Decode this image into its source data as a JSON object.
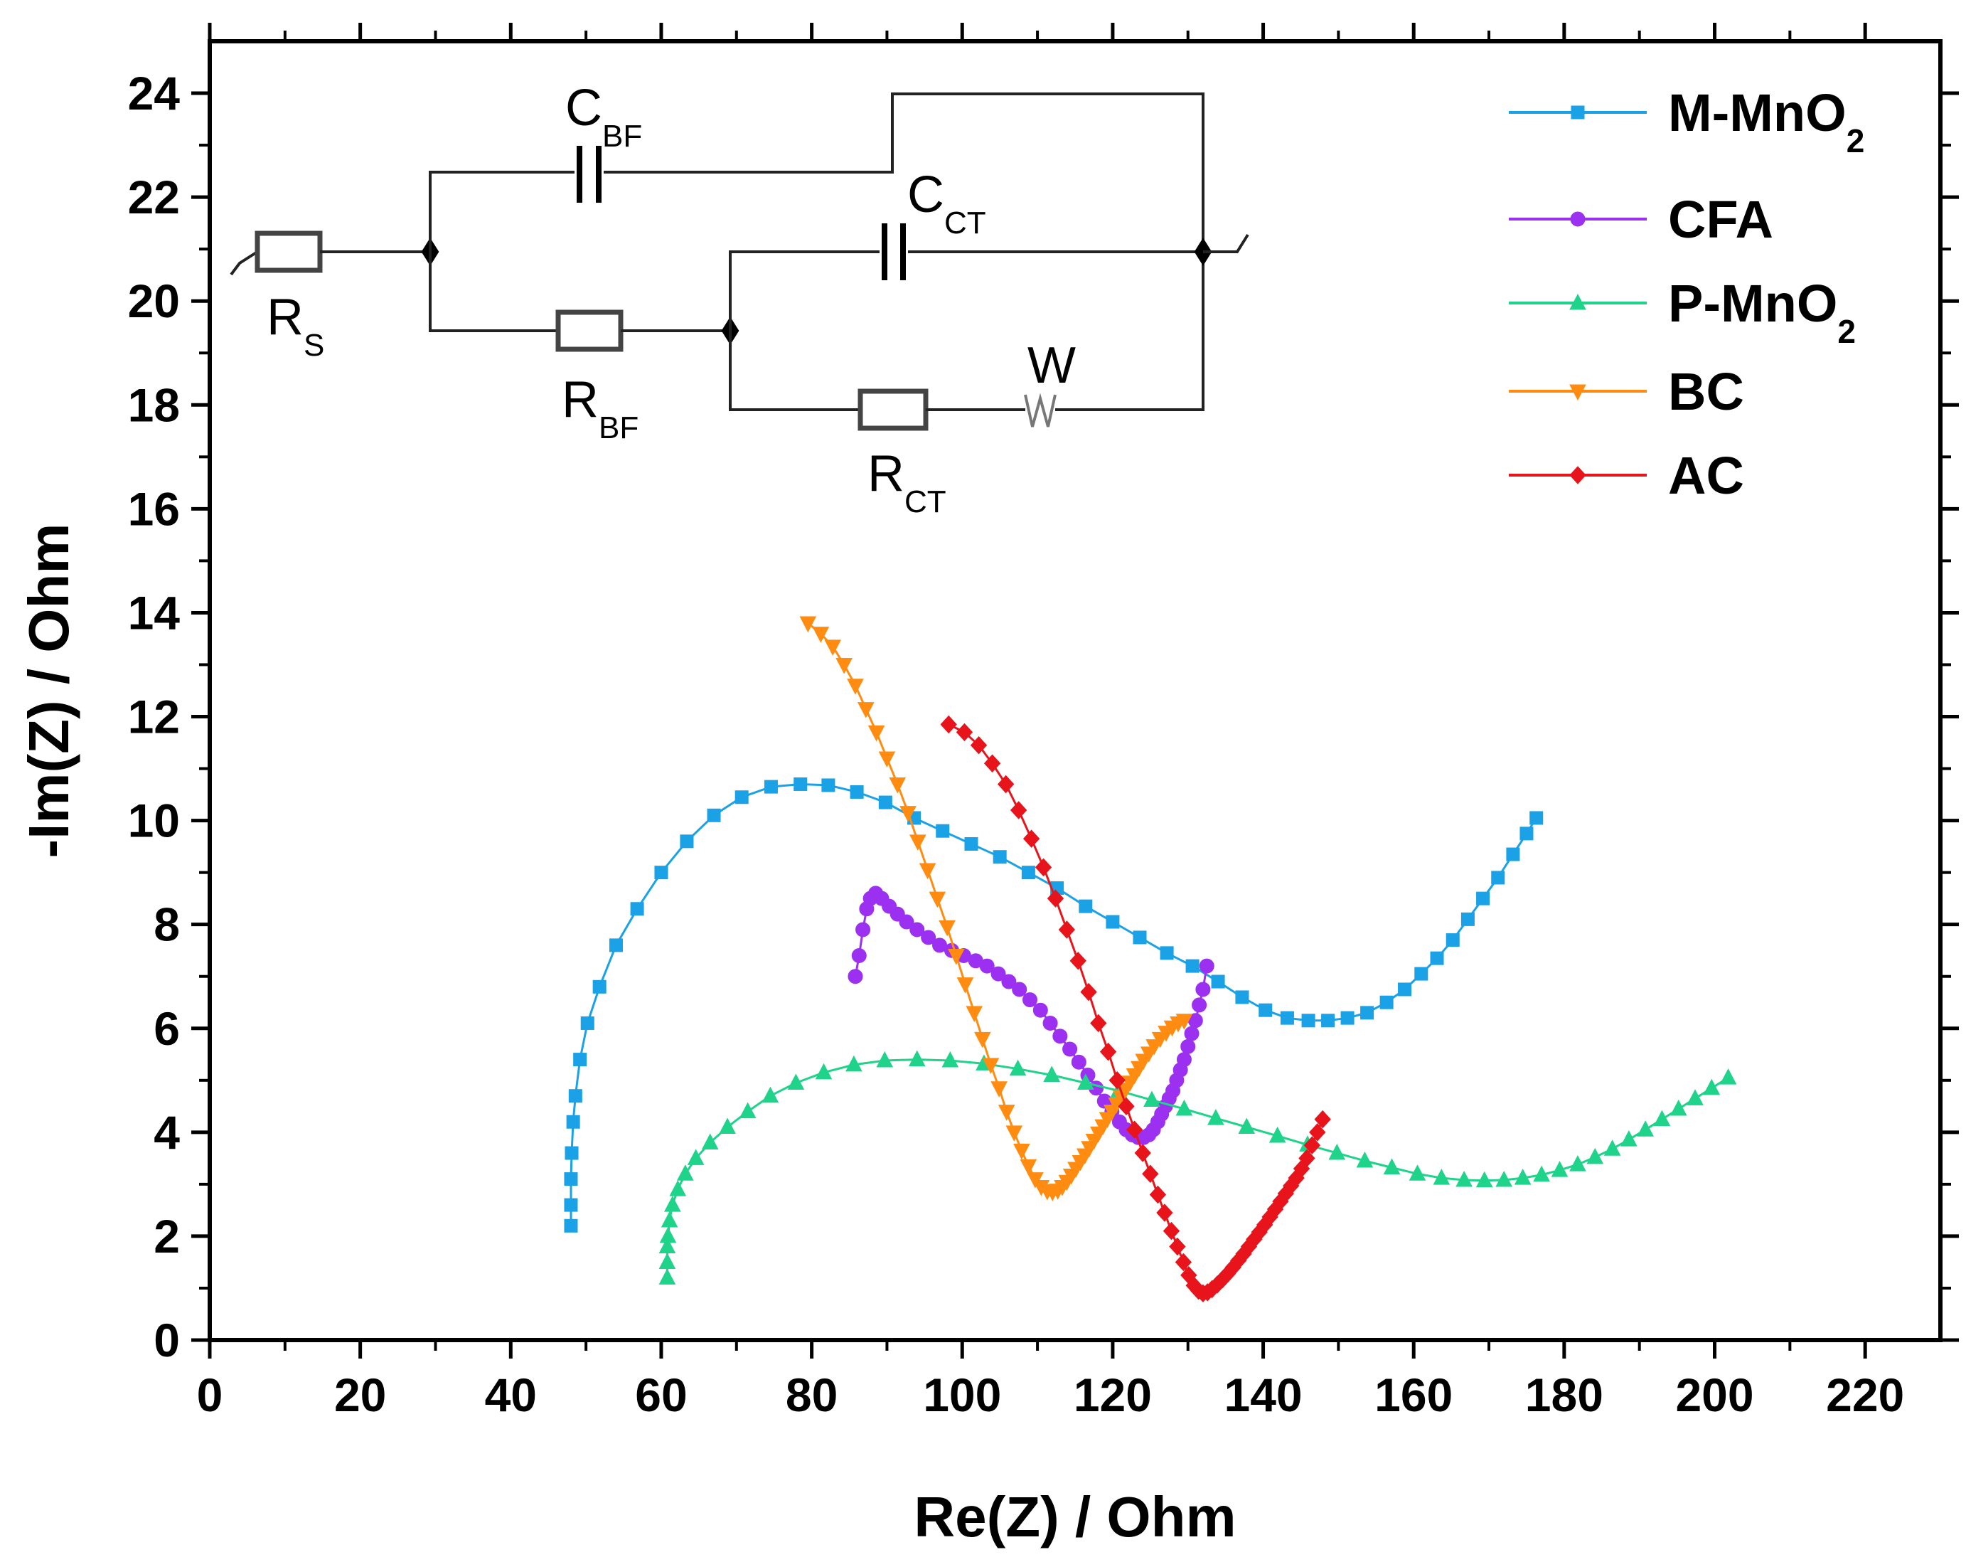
{
  "chart_data": {
    "type": "line",
    "title": "",
    "xlabel": "Re(Z) / Ohm",
    "ylabel": "-Im(Z) / Ohm",
    "xlim": [
      0,
      230
    ],
    "ylim": [
      0,
      25
    ],
    "x_ticks": [
      0,
      20,
      40,
      60,
      80,
      100,
      120,
      140,
      160,
      180,
      200,
      220
    ],
    "y_ticks": [
      0,
      2,
      4,
      6,
      8,
      10,
      12,
      14,
      16,
      18,
      20,
      22,
      24
    ],
    "grid": false,
    "legend_position": "top-right",
    "series": [
      {
        "name": "M-MnO2",
        "label_main": "M-MnO",
        "label_sub": "2",
        "color": "#1aa1e6",
        "marker": "square",
        "x": [
          48.0,
          48.0,
          48.0,
          48.1,
          48.3,
          48.6,
          49.2,
          50.2,
          51.8,
          54.0,
          56.8,
          60.0,
          63.4,
          67.0,
          70.7,
          74.6,
          78.5,
          82.2,
          86.0,
          89.8,
          93.6,
          97.4,
          101.2,
          105.0,
          108.8,
          112.6,
          116.4,
          120.0,
          123.6,
          127.2,
          130.6,
          134.0,
          137.2,
          140.3,
          143.2,
          146.0,
          148.6,
          151.2,
          153.8,
          156.4,
          158.8,
          161.0,
          163.1,
          165.2,
          167.2,
          169.2,
          171.2,
          173.2,
          175.0,
          176.3
        ],
        "y": [
          2.2,
          2.6,
          3.1,
          3.6,
          4.2,
          4.7,
          5.4,
          6.1,
          6.8,
          7.6,
          8.3,
          9.0,
          9.6,
          10.1,
          10.45,
          10.65,
          10.7,
          10.68,
          10.55,
          10.35,
          10.05,
          9.8,
          9.55,
          9.3,
          9.0,
          8.7,
          8.35,
          8.05,
          7.75,
          7.45,
          7.2,
          6.9,
          6.6,
          6.35,
          6.2,
          6.15,
          6.15,
          6.2,
          6.3,
          6.5,
          6.75,
          7.05,
          7.35,
          7.7,
          8.1,
          8.5,
          8.9,
          9.35,
          9.75,
          10.05
        ]
      },
      {
        "name": "CFA",
        "label_main": "CFA",
        "label_sub": "",
        "color": "#9c30f0",
        "marker": "circle",
        "x": [
          85.8,
          86.3,
          86.8,
          87.3,
          87.8,
          88.5,
          89.3,
          90.3,
          91.4,
          92.6,
          94.0,
          95.5,
          97.0,
          98.6,
          100.2,
          101.8,
          103.3,
          104.8,
          106.2,
          107.6,
          109.0,
          110.4,
          111.7,
          113.0,
          114.3,
          115.5,
          116.7,
          117.8,
          118.9,
          119.9,
          120.9,
          121.8,
          122.6,
          123.4,
          124.1,
          124.8,
          125.4,
          126.0,
          126.5,
          127.0,
          127.5,
          128.0,
          128.5,
          129.0,
          129.5,
          130.0,
          130.5,
          131.0,
          131.5,
          132.0,
          132.5
        ],
        "y": [
          7.0,
          7.4,
          7.9,
          8.3,
          8.5,
          8.6,
          8.5,
          8.35,
          8.2,
          8.05,
          7.9,
          7.75,
          7.6,
          7.5,
          7.4,
          7.3,
          7.2,
          7.05,
          6.9,
          6.75,
          6.55,
          6.35,
          6.1,
          5.85,
          5.6,
          5.35,
          5.1,
          4.85,
          4.6,
          4.4,
          4.2,
          4.05,
          3.95,
          3.9,
          3.9,
          3.95,
          4.05,
          4.2,
          4.35,
          4.5,
          4.65,
          4.8,
          5.0,
          5.2,
          5.4,
          5.65,
          5.9,
          6.15,
          6.45,
          6.75,
          7.2
        ]
      },
      {
        "name": "P-MnO2",
        "label_main": "P-MnO",
        "label_sub": "2",
        "color": "#1fd38a",
        "marker": "triangle-up",
        "x": [
          60.8,
          60.8,
          60.8,
          60.9,
          61.1,
          61.5,
          62.2,
          63.2,
          64.6,
          66.5,
          68.8,
          71.5,
          74.5,
          77.9,
          81.6,
          85.6,
          89.7,
          94.0,
          98.4,
          102.9,
          107.4,
          111.9,
          116.4,
          120.8,
          125.2,
          129.5,
          133.7,
          137.8,
          141.9,
          145.9,
          149.8,
          153.5,
          157.1,
          160.5,
          163.7,
          166.7,
          169.4,
          172.0,
          174.5,
          177.0,
          179.4,
          181.8,
          184.1,
          186.4,
          188.6,
          190.8,
          193.0,
          195.2,
          197.4,
          199.6,
          201.8
        ],
        "y": [
          1.2,
          1.5,
          1.8,
          2.0,
          2.3,
          2.6,
          2.9,
          3.2,
          3.5,
          3.8,
          4.1,
          4.4,
          4.7,
          4.95,
          5.15,
          5.3,
          5.38,
          5.4,
          5.38,
          5.32,
          5.22,
          5.1,
          4.95,
          4.8,
          4.62,
          4.45,
          4.27,
          4.1,
          3.93,
          3.76,
          3.6,
          3.45,
          3.32,
          3.2,
          3.12,
          3.08,
          3.07,
          3.08,
          3.12,
          3.18,
          3.27,
          3.38,
          3.52,
          3.68,
          3.86,
          4.05,
          4.25,
          4.45,
          4.65,
          4.85,
          5.05
        ]
      },
      {
        "name": "BC",
        "label_main": "BC",
        "label_sub": "",
        "color": "#ff8c10",
        "marker": "triangle-down",
        "x": [
          79.5,
          81.2,
          82.8,
          84.3,
          85.8,
          87.2,
          88.6,
          90.0,
          91.4,
          92.8,
          94.1,
          95.4,
          96.7,
          98.0,
          99.2,
          100.4,
          101.6,
          102.7,
          103.8,
          104.9,
          105.9,
          106.9,
          107.9,
          108.8,
          109.7,
          110.5,
          111.3,
          112.0,
          112.7,
          113.3,
          113.9,
          114.5,
          115.1,
          115.7,
          116.3,
          116.9,
          117.5,
          118.1,
          118.7,
          119.3,
          119.9,
          120.5,
          121.1,
          121.7,
          122.3,
          122.9,
          123.5,
          124.1,
          124.8,
          125.5,
          126.3,
          127.1,
          127.9,
          128.7,
          129.5
        ],
        "y": [
          13.8,
          13.6,
          13.35,
          13.0,
          12.6,
          12.15,
          11.7,
          11.2,
          10.7,
          10.15,
          9.6,
          9.05,
          8.5,
          7.95,
          7.4,
          6.85,
          6.3,
          5.8,
          5.3,
          4.85,
          4.4,
          4.0,
          3.65,
          3.35,
          3.1,
          2.95,
          2.87,
          2.85,
          2.88,
          2.95,
          3.05,
          3.17,
          3.3,
          3.43,
          3.56,
          3.7,
          3.84,
          3.98,
          4.12,
          4.26,
          4.4,
          4.54,
          4.68,
          4.82,
          4.96,
          5.1,
          5.24,
          5.38,
          5.52,
          5.66,
          5.8,
          5.92,
          6.02,
          6.1,
          6.15
        ]
      },
      {
        "name": "AC",
        "label_main": "AC",
        "label_sub": "",
        "color": "#e8141b",
        "marker": "diamond",
        "x": [
          98.2,
          100.3,
          102.2,
          104.0,
          105.8,
          107.5,
          109.2,
          110.8,
          112.4,
          113.9,
          115.4,
          116.8,
          118.1,
          119.4,
          120.6,
          121.8,
          122.9,
          124.0,
          125.0,
          126.0,
          126.9,
          127.8,
          128.6,
          129.4,
          130.1,
          130.8,
          131.4,
          132.0,
          132.6,
          133.2,
          133.9,
          134.6,
          135.3,
          136.0,
          136.7,
          137.4,
          138.1,
          138.8,
          139.5,
          140.2,
          140.9,
          141.6,
          142.3,
          143.0,
          143.7,
          144.4,
          145.1,
          145.8,
          146.5,
          147.2,
          147.9
        ],
        "y": [
          11.85,
          11.7,
          11.45,
          11.1,
          10.7,
          10.2,
          9.65,
          9.1,
          8.5,
          7.9,
          7.3,
          6.7,
          6.1,
          5.55,
          5.0,
          4.5,
          4.05,
          3.6,
          3.2,
          2.8,
          2.45,
          2.1,
          1.8,
          1.5,
          1.25,
          1.05,
          0.95,
          0.9,
          0.92,
          0.98,
          1.07,
          1.17,
          1.28,
          1.4,
          1.53,
          1.66,
          1.8,
          1.94,
          2.08,
          2.22,
          2.37,
          2.52,
          2.67,
          2.82,
          2.97,
          3.12,
          3.3,
          3.5,
          3.75,
          4.0,
          4.25
        ]
      }
    ],
    "circuit_labels": {
      "rs": {
        "main": "R",
        "sub": "S"
      },
      "cbf": {
        "main": "C",
        "sub": "BF"
      },
      "rbf": {
        "main": "R",
        "sub": "BF"
      },
      "cct": {
        "main": "C",
        "sub": "CT"
      },
      "rct": {
        "main": "R",
        "sub": "CT"
      },
      "w": "W"
    }
  }
}
